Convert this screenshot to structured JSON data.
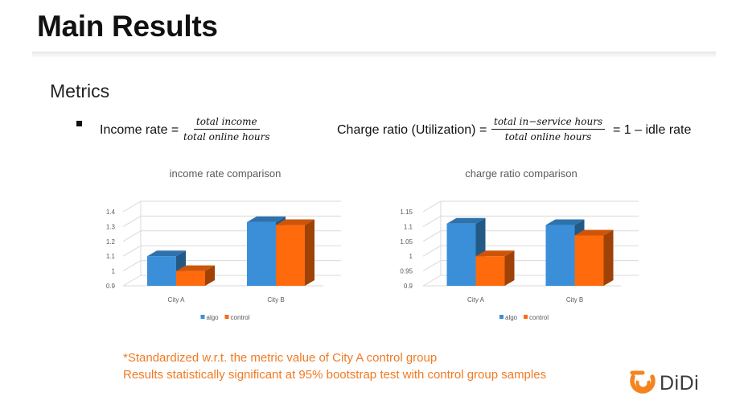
{
  "slide": {
    "title": "Main Results",
    "subtitle": "Metrics"
  },
  "formulas": {
    "income_label": "Income rate =",
    "income_num": "total income",
    "income_den": "total online hours",
    "charge_label": "Charge ratio (Utilization) =",
    "charge_num": "total in−service hours",
    "charge_den": "total online hours",
    "charge_tail": "= 1 – idle rate"
  },
  "footnote": {
    "line1": "*Standardized w.r.t. the metric value of City A control group",
    "line2": "Results statistically significant at 95% bootstrap test with control group samples"
  },
  "logo": {
    "text": "DiDi",
    "color": "#f5841f"
  },
  "colors": {
    "algo": "#3a8fd8",
    "control": "#ff6a0d",
    "footnote": "#f07b24"
  },
  "chart_data": [
    {
      "type": "bar",
      "style": "3d-clustered-column",
      "title": "income rate comparison",
      "categories": [
        "City A",
        "City B"
      ],
      "series": [
        {
          "name": "algo",
          "values": [
            1.1,
            1.33
          ]
        },
        {
          "name": "control",
          "values": [
            1.0,
            1.31
          ]
        }
      ],
      "ylim": [
        0.9,
        1.4
      ],
      "yticks": [
        "0.9",
        "1",
        "1.1",
        "1.2",
        "1.3",
        "1.4"
      ],
      "grid": true,
      "legend": "bottom"
    },
    {
      "type": "bar",
      "style": "3d-clustered-column",
      "title": "charge ratio comparison",
      "categories": [
        "City A",
        "City B"
      ],
      "series": [
        {
          "name": "algo",
          "values": [
            1.11,
            1.105
          ]
        },
        {
          "name": "control",
          "values": [
            1.0,
            1.07
          ]
        }
      ],
      "ylim": [
        0.9,
        1.15
      ],
      "yticks": [
        "0.9",
        "0.95",
        "1",
        "1.05",
        "1.1",
        "1.15"
      ],
      "grid": true,
      "legend": "bottom"
    }
  ]
}
